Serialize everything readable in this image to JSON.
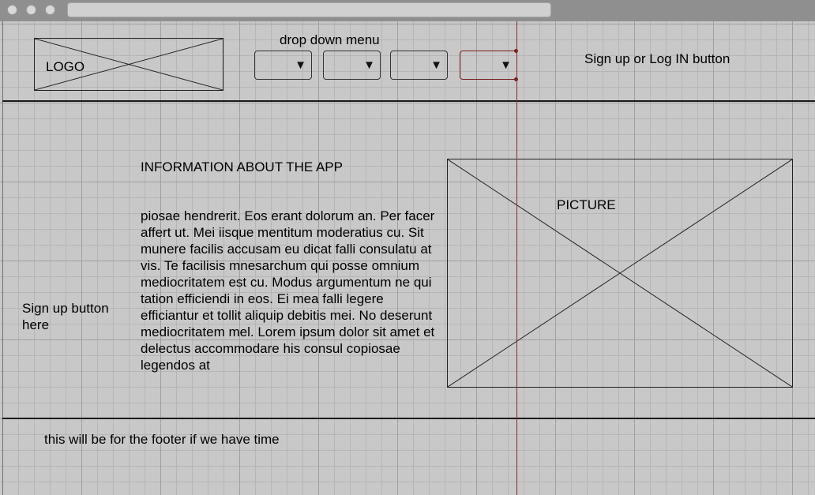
{
  "header": {
    "logo_label": "LOGO",
    "dropdown_caption": "drop down menu",
    "dropdown_arrow": "▼",
    "auth_label": "Sign up or Log IN button"
  },
  "main": {
    "heading": "INFORMATION ABOUT THE APP",
    "body_text": "piosae hendrerit. Eos erant dolorum an. Per facer affert ut. Mei iisque mentitum moderatius cu. Sit munere facilis accusam eu dicat falli consulatu at vis. Te facilisis mnesarchum qui posse omnium mediocritatem est cu. Modus argumentum ne qui tation efficiendi in eos. Ei mea falli legere efficiantur et tollit aliquip debitis mei. No deserunt mediocritatem mel. Lorem ipsum dolor sit amet et delectus accommodare his consul copiosae legendos at",
    "picture_label": "PICTURE",
    "signup_label": "Sign up button here"
  },
  "footer": {
    "text": "this will be for the footer if we have time"
  }
}
